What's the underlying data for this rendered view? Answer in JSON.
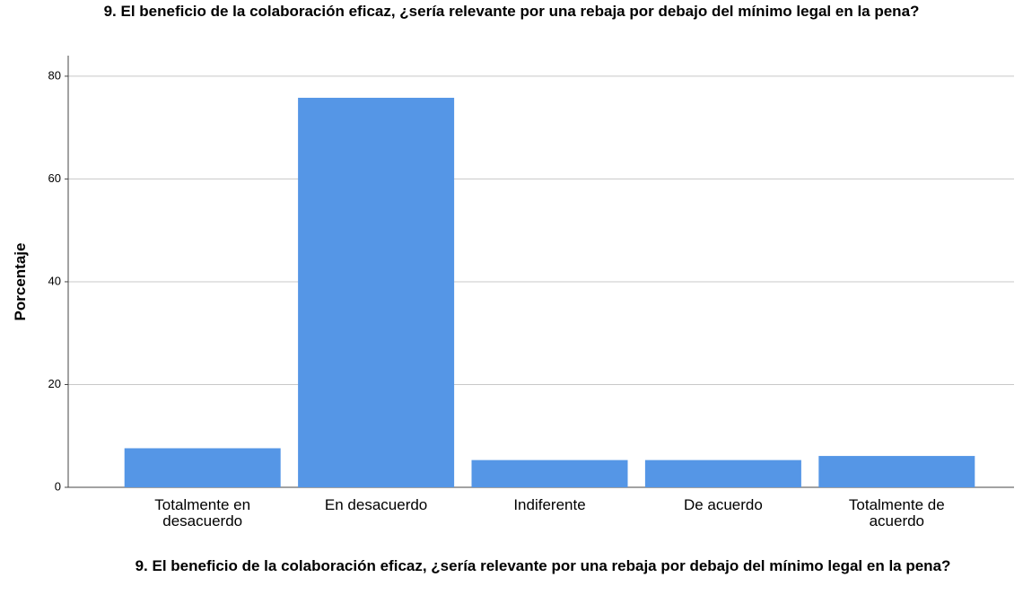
{
  "chart_data": {
    "type": "bar",
    "title": "9.  El beneficio de la colaboración eficaz, ¿sería relevante por una rebaja por debajo del mínimo legal en la pena?",
    "x_label": "9.  El beneficio de la colaboración eficaz, ¿sería relevante por una rebaja por debajo del mínimo legal en la pena?",
    "y_label": "Porcentaje",
    "categories": [
      "Totalmente en desacuerdo",
      "En desacuerdo",
      "Indiferente",
      "De acuerdo",
      "Totalmente de acuerdo"
    ],
    "values": [
      7.6,
      75.8,
      5.3,
      5.3,
      6.1
    ],
    "color": "#5596e6",
    "ylim": [
      0,
      84
    ],
    "yticks": [
      0,
      20,
      40,
      60,
      80
    ],
    "grid": true
  }
}
